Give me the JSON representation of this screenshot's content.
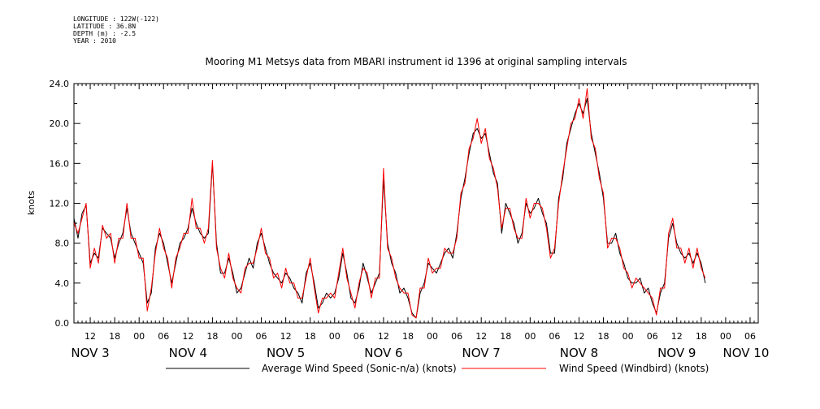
{
  "meta": [
    "LONGITUDE : 122W(-122)",
    "LATITUDE : 36.8N",
    "DEPTH (m) : -2.5",
    "YEAR : 2010"
  ],
  "chart_data": {
    "type": "line",
    "title": "Mooring M1 Metsys data from MBARI instrument id 1396 at original sampling intervals",
    "ylabel": "knots",
    "xlabel": "",
    "ylim": [
      0,
      24
    ],
    "yticks": [
      "0.0",
      "4.0",
      "8.0",
      "12.0",
      "16.0",
      "20.0",
      "24.0"
    ],
    "xlim_hours": [
      8,
      176
    ],
    "xticks": [
      {
        "h": 12,
        "label": "12"
      },
      {
        "h": 18,
        "label": "18"
      },
      {
        "h": 24,
        "label": "00"
      },
      {
        "h": 30,
        "label": "06"
      },
      {
        "h": 36,
        "label": "12"
      },
      {
        "h": 42,
        "label": "18"
      },
      {
        "h": 48,
        "label": "00"
      },
      {
        "h": 54,
        "label": "06"
      },
      {
        "h": 60,
        "label": "12"
      },
      {
        "h": 66,
        "label": "18"
      },
      {
        "h": 72,
        "label": "00"
      },
      {
        "h": 78,
        "label": "06"
      },
      {
        "h": 84,
        "label": "12"
      },
      {
        "h": 90,
        "label": "18"
      },
      {
        "h": 96,
        "label": "00"
      },
      {
        "h": 102,
        "label": "06"
      },
      {
        "h": 108,
        "label": "12"
      },
      {
        "h": 114,
        "label": "18"
      },
      {
        "h": 120,
        "label": "00"
      },
      {
        "h": 126,
        "label": "06"
      },
      {
        "h": 132,
        "label": "12"
      },
      {
        "h": 138,
        "label": "18"
      },
      {
        "h": 144,
        "label": "00"
      },
      {
        "h": 150,
        "label": "06"
      },
      {
        "h": 156,
        "label": "12"
      },
      {
        "h": 162,
        "label": "18"
      },
      {
        "h": 168,
        "label": "00"
      },
      {
        "h": 174,
        "label": "06"
      }
    ],
    "day_labels": [
      {
        "h": 12,
        "label": "NOV  3"
      },
      {
        "h": 36,
        "label": "NOV  4"
      },
      {
        "h": 60,
        "label": "NOV  5"
      },
      {
        "h": 84,
        "label": "NOV  6"
      },
      {
        "h": 108,
        "label": "NOV  7"
      },
      {
        "h": 132,
        "label": "NOV  8"
      },
      {
        "h": 156,
        "label": "NOV  9"
      },
      {
        "h": 173,
        "label": "NOV 10"
      }
    ],
    "x_hours": [
      8,
      9,
      10,
      11,
      12,
      13,
      14,
      15,
      16,
      17,
      18,
      19,
      20,
      21,
      22,
      23,
      24,
      25,
      26,
      27,
      28,
      29,
      30,
      31,
      32,
      33,
      34,
      35,
      36,
      37,
      38,
      39,
      40,
      41,
      42,
      43,
      44,
      45,
      46,
      47,
      48,
      49,
      50,
      51,
      52,
      53,
      54,
      55,
      56,
      57,
      58,
      59,
      60,
      61,
      62,
      63,
      64,
      65,
      66,
      67,
      68,
      69,
      70,
      71,
      72,
      73,
      74,
      75,
      76,
      77,
      78,
      79,
      80,
      81,
      82,
      83,
      84,
      85,
      86,
      87,
      88,
      89,
      90,
      91,
      92,
      93,
      94,
      95,
      96,
      97,
      98,
      99,
      100,
      101,
      102,
      103,
      104,
      105,
      106,
      107,
      108,
      109,
      110,
      111,
      112,
      113,
      114,
      115,
      116,
      117,
      118,
      119,
      120,
      121,
      122,
      123,
      124,
      125,
      126,
      127,
      128,
      129,
      130,
      131,
      132,
      133,
      134,
      135,
      136,
      137,
      138,
      139,
      140,
      141,
      142,
      143,
      144,
      145,
      146,
      147,
      148,
      149,
      150,
      151,
      152,
      153,
      154,
      155,
      156,
      157,
      158,
      159,
      160,
      161,
      162,
      163,
      164,
      165,
      166,
      167,
      168,
      169,
      170,
      171,
      172,
      173,
      174,
      175,
      176
    ],
    "series": [
      {
        "name": "Average Wind Speed (Sonic-n/a) (knots)",
        "color": "#000000",
        "values": [
          10.5,
          8.5,
          11.0,
          11.8,
          6.0,
          7.0,
          6.5,
          9.5,
          9.0,
          8.5,
          6.5,
          8.0,
          9.0,
          11.5,
          9.0,
          8.0,
          7.0,
          6.0,
          2.0,
          3.0,
          7.5,
          9.0,
          8.0,
          6.0,
          4.0,
          6.0,
          8.0,
          8.5,
          9.5,
          11.5,
          10.0,
          9.0,
          8.5,
          9.0,
          16.0,
          8.0,
          5.0,
          5.0,
          6.5,
          5.0,
          3.0,
          3.5,
          5.0,
          6.5,
          5.5,
          8.0,
          9.0,
          7.5,
          6.0,
          5.0,
          4.5,
          4.0,
          5.0,
          4.5,
          3.5,
          3.0,
          2.0,
          5.0,
          6.0,
          4.0,
          1.5,
          2.0,
          3.0,
          2.5,
          3.0,
          4.5,
          7.0,
          5.0,
          2.5,
          2.0,
          3.5,
          6.0,
          4.5,
          3.0,
          4.0,
          5.0,
          14.5,
          8.0,
          6.0,
          5.0,
          3.0,
          3.5,
          2.5,
          1.0,
          0.5,
          3.0,
          4.0,
          6.0,
          5.5,
          5.0,
          6.0,
          7.0,
          7.5,
          6.5,
          9.0,
          12.5,
          14.5,
          17.0,
          19.0,
          19.5,
          18.5,
          19.0,
          17.0,
          15.0,
          14.0,
          9.0,
          12.0,
          11.0,
          10.0,
          8.0,
          9.0,
          12.0,
          11.0,
          11.5,
          12.5,
          11.0,
          10.0,
          7.0,
          7.0,
          12.5,
          14.5,
          18.0,
          19.5,
          21.0,
          22.0,
          21.0,
          22.5,
          19.0,
          17.0,
          15.0,
          12.5,
          8.0,
          8.0,
          9.0,
          7.0,
          6.0,
          4.5,
          4.0,
          4.0,
          4.5,
          3.0,
          3.5,
          2.0,
          1.0,
          3.0,
          4.0,
          8.5,
          10.0,
          8.0,
          7.0,
          6.5,
          7.0,
          6.0,
          7.0,
          6.0,
          4.0
        ],
        "show_legend": true
      },
      {
        "name": "Wind Speed (Windbird) (knots)",
        "color": "#ff0000",
        "values": [
          10.0,
          9.0,
          10.5,
          12.0,
          5.5,
          7.5,
          6.0,
          9.8,
          8.5,
          9.0,
          6.0,
          8.5,
          8.5,
          12.0,
          8.5,
          8.5,
          6.5,
          6.5,
          1.2,
          3.5,
          7.0,
          9.5,
          7.5,
          6.5,
          3.5,
          6.5,
          7.5,
          9.0,
          9.0,
          12.5,
          9.5,
          9.5,
          8.0,
          9.5,
          16.3,
          7.5,
          5.5,
          4.5,
          7.0,
          4.5,
          3.5,
          3.0,
          5.5,
          6.0,
          6.0,
          7.5,
          9.5,
          7.0,
          6.5,
          4.5,
          5.0,
          3.5,
          5.5,
          4.0,
          4.0,
          2.5,
          2.5,
          4.5,
          6.5,
          3.5,
          1.0,
          2.5,
          2.5,
          3.0,
          2.5,
          5.0,
          7.5,
          4.5,
          3.0,
          1.5,
          4.0,
          5.5,
          5.0,
          2.5,
          4.5,
          4.5,
          15.5,
          7.5,
          6.5,
          4.5,
          3.5,
          3.0,
          3.0,
          0.8,
          0.5,
          3.5,
          3.5,
          6.5,
          5.0,
          5.5,
          5.5,
          7.5,
          7.0,
          7.0,
          8.5,
          13.0,
          14.0,
          17.5,
          18.5,
          20.5,
          18.0,
          19.5,
          16.5,
          15.5,
          13.5,
          9.5,
          11.5,
          11.5,
          9.5,
          8.5,
          8.5,
          12.5,
          10.5,
          12.0,
          12.0,
          11.5,
          9.5,
          6.5,
          7.5,
          12.0,
          15.0,
          17.5,
          20.0,
          20.5,
          22.5,
          20.5,
          23.5,
          18.5,
          17.5,
          14.5,
          13.0,
          7.5,
          8.5,
          8.5,
          7.5,
          5.5,
          5.0,
          3.5,
          4.5,
          4.0,
          3.5,
          3.0,
          2.5,
          0.8,
          3.5,
          3.5,
          9.0,
          10.5,
          7.5,
          7.5,
          6.0,
          7.5,
          5.5,
          7.5,
          5.5,
          4.5
        ],
        "show_legend": true
      }
    ],
    "grid": false,
    "legend_position": "bottom"
  }
}
